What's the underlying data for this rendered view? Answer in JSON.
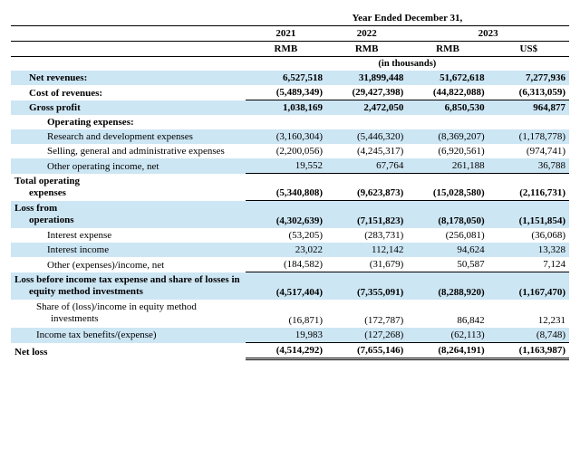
{
  "caption": {
    "title": "Year Ended December 31,",
    "note": "(in thousands)"
  },
  "columns": {
    "y2021": {
      "year": "2021",
      "currency": "RMB"
    },
    "y2022": {
      "year": "2022",
      "currency": "RMB"
    },
    "y2023rmb": {
      "year": "2023",
      "currency": "RMB"
    },
    "y2023usd": {
      "currency": "US$"
    }
  },
  "rows": {
    "net_revenues": {
      "label": "Net revenues:",
      "v1": "6,527,518",
      "v2": "31,899,448",
      "v3": "51,672,618",
      "v4": "7,277,936"
    },
    "cost_revenues": {
      "label": "Cost of revenues:",
      "v1": "(5,489,349)",
      "v2": "(29,427,398)",
      "v3": "(44,822,088)",
      "v4": "(6,313,059)"
    },
    "gross_profit": {
      "label": "Gross profit",
      "v1": "1,038,169",
      "v2": "2,472,050",
      "v3": "6,850,530",
      "v4": "964,877"
    },
    "op_exp_header": {
      "label": "Operating expenses:"
    },
    "rd": {
      "label": "Research and development expenses",
      "v1": "(3,160,304)",
      "v2": "(5,446,320)",
      "v3": "(8,369,207)",
      "v4": "(1,178,778)"
    },
    "sga": {
      "label": "Selling, general and administrative expenses",
      "v1": "(2,200,056)",
      "v2": "(4,245,317)",
      "v3": "(6,920,561)",
      "v4": "(974,741)"
    },
    "other_op": {
      "label": "Other operating income, net",
      "v1": "19,552",
      "v2": "67,764",
      "v3": "261,188",
      "v4": "36,788"
    },
    "total_op_exp": {
      "label1": "Total operating",
      "label2": "  expenses",
      "v1": "(5,340,808)",
      "v2": "(9,623,873)",
      "v3": "(15,028,580)",
      "v4": "(2,116,731)"
    },
    "loss_ops": {
      "label1": "Loss from",
      "label2": "  operations",
      "v1": "(4,302,639)",
      "v2": "(7,151,823)",
      "v3": "(8,178,050)",
      "v4": "(1,151,854)"
    },
    "int_expense": {
      "label": "Interest expense",
      "v1": "(53,205)",
      "v2": "(283,731)",
      "v3": "(256,081)",
      "v4": "(36,068)"
    },
    "int_income": {
      "label": "Interest income",
      "v1": "23,022",
      "v2": "112,142",
      "v3": "94,624",
      "v4": "13,328"
    },
    "other_exp_inc": {
      "label": "Other (expenses)/income, net",
      "v1": "(184,582)",
      "v2": "(31,679)",
      "v3": "50,587",
      "v4": "7,124"
    },
    "loss_before_tax": {
      "label": "Loss before income tax expense and share of losses in equity method investments",
      "v1": "(4,517,404)",
      "v2": "(7,355,091)",
      "v3": "(8,288,920)",
      "v4": "(1,167,470)"
    },
    "equity_share": {
      "label": "Share of (loss)/income in equity method investments",
      "v1": "(16,871)",
      "v2": "(172,787)",
      "v3": "86,842",
      "v4": "12,231"
    },
    "tax": {
      "label": "Income tax benefits/(expense)",
      "v1": "19,983",
      "v2": "(127,268)",
      "v3": "(62,113)",
      "v4": "(8,748)"
    },
    "net_loss": {
      "label": "Net loss",
      "v1": "(4,514,292)",
      "v2": "(7,655,146)",
      "v3": "(8,264,191)",
      "v4": "(1,163,987)"
    }
  },
  "styling": {
    "shade_color": "#cde6f4",
    "font_family": "Georgia, Times New Roman, serif",
    "font_size_pt": 11,
    "background_color": "#ffffff",
    "text_color": "#000000"
  }
}
